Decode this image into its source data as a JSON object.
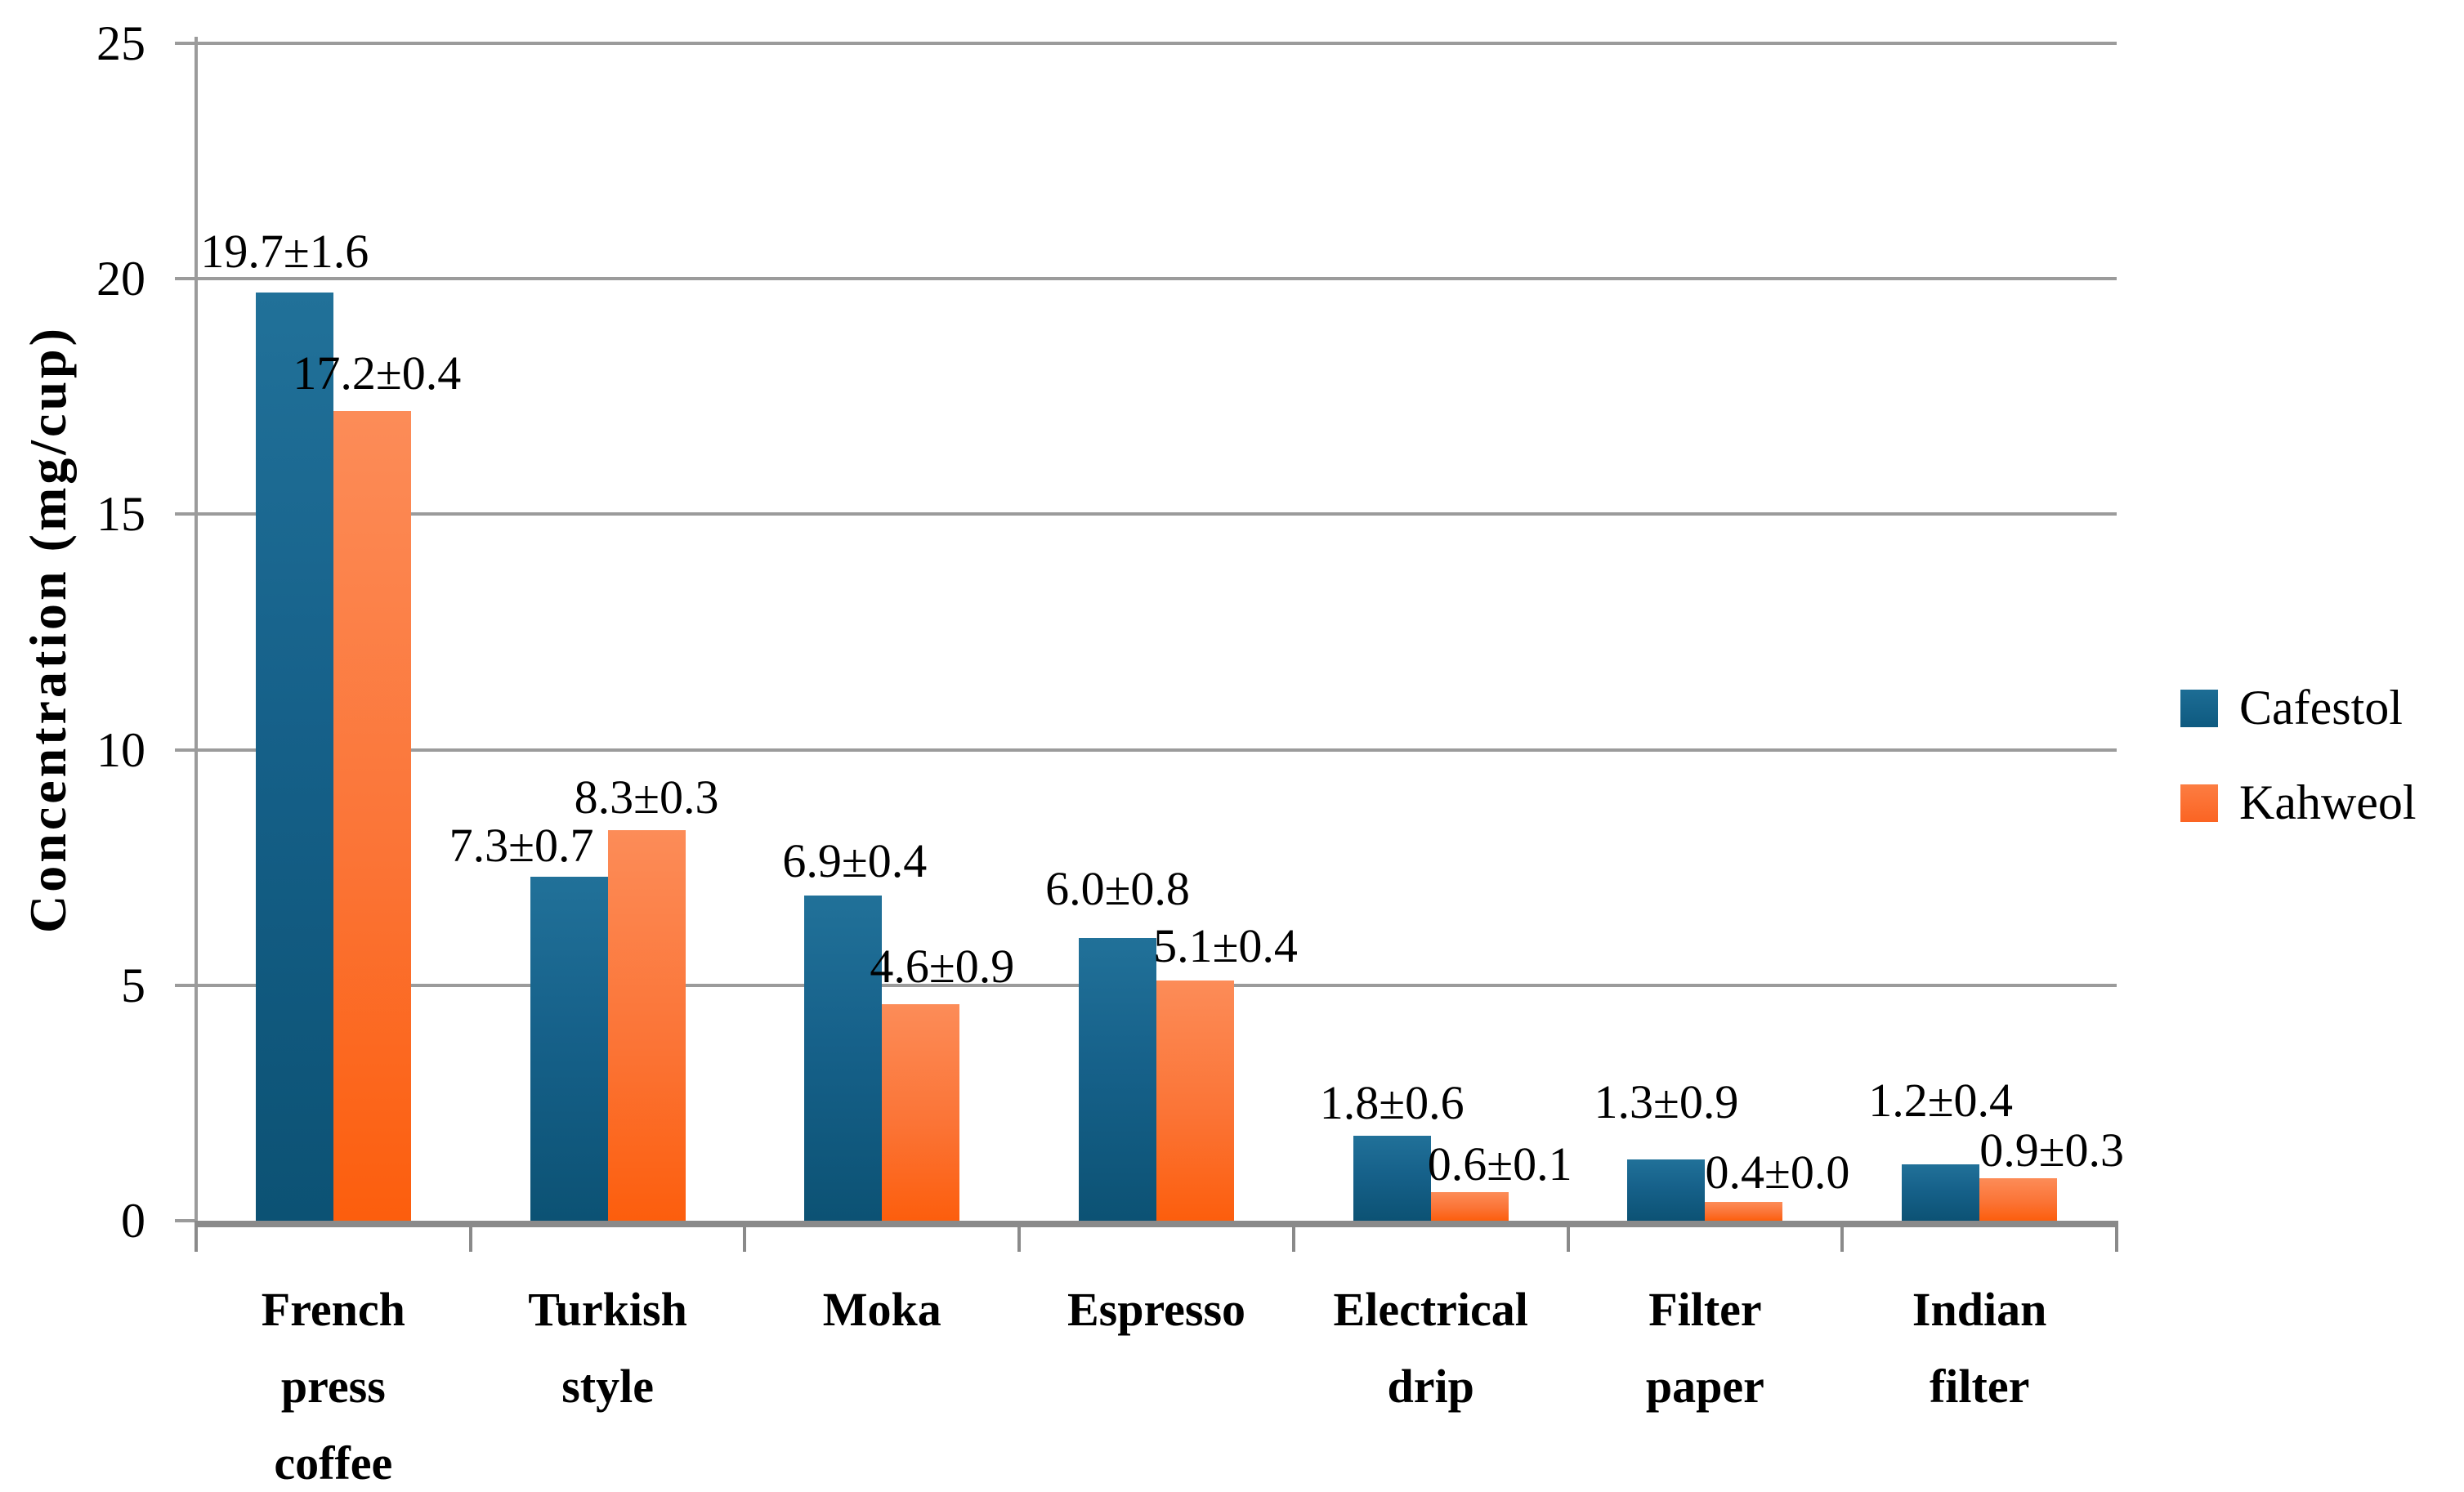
{
  "chart_data": {
    "type": "bar",
    "title": "",
    "xlabel": "",
    "ylabel": "Concentration (mg/cup)",
    "ylim": [
      0,
      25
    ],
    "yticks": [
      0,
      5,
      10,
      15,
      20,
      25
    ],
    "ytick_labels": [
      "0",
      "5",
      "10",
      "15",
      "20",
      "25"
    ],
    "grid": true,
    "legend_position": "right",
    "categories": [
      "French press coffee",
      "Turkish style",
      "Moka",
      "Espresso",
      "Electrical drip",
      "Filter paper",
      "Indian filter"
    ],
    "category_lines": [
      [
        "French",
        "press",
        "coffee"
      ],
      [
        "Turkish",
        "style"
      ],
      [
        "Moka"
      ],
      [
        "Espresso"
      ],
      [
        "Electrical",
        "drip"
      ],
      [
        "Filter",
        "paper"
      ],
      [
        "Indian",
        "filter"
      ]
    ],
    "series": [
      {
        "name": "Cafestol",
        "color": "#16618a",
        "values": [
          19.7,
          7.3,
          6.9,
          6.0,
          1.8,
          1.3,
          1.2
        ],
        "errors": [
          1.6,
          0.7,
          0.4,
          0.8,
          0.6,
          0.9,
          0.4
        ],
        "labels": [
          "19.7±1.6",
          "7.3±0.7",
          "6.9±0.4",
          "6.0±0.8",
          "1.8±0.6",
          "1.3±0.9",
          "1.2±0.4"
        ]
      },
      {
        "name": "Kahweol",
        "color": "#fb7436",
        "values": [
          17.2,
          8.3,
          4.6,
          5.1,
          0.6,
          0.4,
          0.9
        ],
        "errors": [
          0.4,
          0.3,
          0.9,
          0.4,
          0.1,
          0.0,
          0.3
        ],
        "labels": [
          "17.2±0.4",
          "8.3±0.3",
          "4.6±0.9",
          "5.1±0.4",
          "0.6±0.1",
          "0.4±0.0",
          "0.9±0.3"
        ]
      }
    ]
  }
}
